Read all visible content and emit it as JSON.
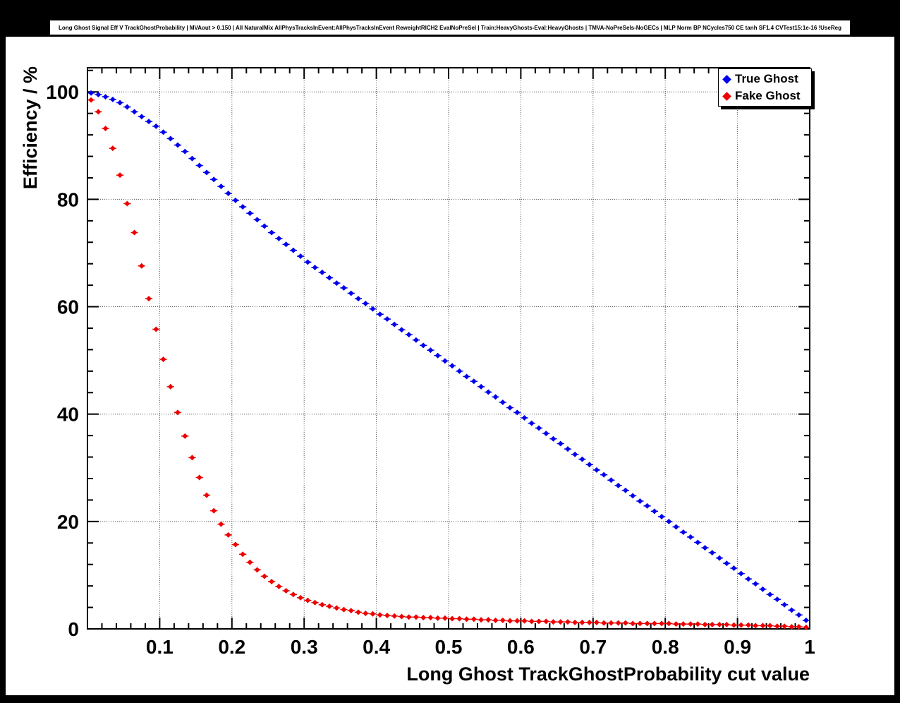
{
  "chart_data": {
    "type": "scatter",
    "title": "Long Ghost Signal Eff V TrackGhostProbability | MVAout > 0.150 | All NaturalMix AllPhysTracksInEvent:AllPhysTracksInEvent ReweightRICH2 EvalNoPreSel | Train:HeavyGhosts-Eval:HeavyGhosts | TMVA-NoPreSels-NoGECs | MLP Norm BP NCycles750 CE tanh SF1.4 CVTest15:1e-16 !UseReg",
    "xlabel": "Long Ghost TrackGhostProbability cut value",
    "ylabel": "Efficiency / %",
    "xlim": [
      0,
      1
    ],
    "ylim": [
      0,
      104.5
    ],
    "xticks": [
      0.1,
      0.2,
      0.3,
      0.4,
      0.5,
      0.6,
      0.7,
      0.8,
      0.9,
      1.0
    ],
    "xtick_labels": [
      "0.1",
      "0.2",
      "0.3",
      "0.4",
      "0.5",
      "0.6",
      "0.7",
      "0.8",
      "0.9",
      "1"
    ],
    "yticks": [
      0,
      20,
      40,
      60,
      80,
      100
    ],
    "ytick_labels": [
      "0",
      "20",
      "40",
      "60",
      "80",
      "100"
    ],
    "x_minor_step": 0.02,
    "y_minor_step": 4,
    "grid": true,
    "x_error": 0.005,
    "legend": {
      "position": "top-right",
      "entries": [
        {
          "label": "True Ghost",
          "color": "#0000ee"
        },
        {
          "label": "Fake Ghost",
          "color": "#ee0000"
        }
      ]
    },
    "x": [
      0.005,
      0.015,
      0.025,
      0.035,
      0.045,
      0.055,
      0.065,
      0.075,
      0.085,
      0.095,
      0.105,
      0.115,
      0.125,
      0.135,
      0.145,
      0.155,
      0.165,
      0.175,
      0.185,
      0.195,
      0.205,
      0.215,
      0.225,
      0.235,
      0.245,
      0.255,
      0.265,
      0.275,
      0.285,
      0.295,
      0.305,
      0.315,
      0.325,
      0.335,
      0.345,
      0.355,
      0.365,
      0.375,
      0.385,
      0.395,
      0.405,
      0.415,
      0.425,
      0.435,
      0.445,
      0.455,
      0.465,
      0.475,
      0.485,
      0.495,
      0.505,
      0.515,
      0.525,
      0.535,
      0.545,
      0.555,
      0.565,
      0.575,
      0.585,
      0.595,
      0.605,
      0.615,
      0.625,
      0.635,
      0.645,
      0.655,
      0.665,
      0.675,
      0.685,
      0.695,
      0.705,
      0.715,
      0.725,
      0.735,
      0.745,
      0.755,
      0.765,
      0.775,
      0.785,
      0.795,
      0.805,
      0.815,
      0.825,
      0.835,
      0.845,
      0.855,
      0.865,
      0.875,
      0.885,
      0.895,
      0.905,
      0.915,
      0.925,
      0.935,
      0.945,
      0.955,
      0.965,
      0.975,
      0.985,
      0.995
    ],
    "series": [
      {
        "name": "True Ghost",
        "color": "#0000ee",
        "values": [
          99.8,
          99.5,
          99.1,
          98.6,
          98.0,
          97.2,
          96.3,
          95.4,
          94.5,
          93.6,
          92.5,
          91.3,
          90.1,
          88.9,
          87.6,
          86.3,
          85.0,
          83.7,
          82.4,
          81.1,
          79.8,
          78.6,
          77.4,
          76.2,
          75.0,
          73.8,
          72.7,
          71.6,
          70.5,
          69.4,
          68.3,
          67.3,
          66.4,
          65.4,
          64.4,
          63.5,
          62.5,
          61.5,
          60.6,
          59.6,
          58.6,
          57.7,
          56.7,
          55.7,
          54.8,
          53.8,
          52.8,
          51.9,
          50.9,
          49.9,
          49.0,
          48.0,
          47.0,
          46.1,
          45.1,
          44.1,
          43.2,
          42.2,
          41.2,
          40.3,
          39.3,
          38.3,
          37.4,
          36.4,
          35.4,
          34.5,
          33.5,
          32.5,
          31.6,
          30.6,
          29.6,
          28.7,
          27.7,
          26.7,
          25.8,
          24.8,
          23.8,
          22.9,
          21.9,
          20.9,
          20.0,
          19.0,
          18.0,
          17.1,
          16.1,
          15.1,
          14.2,
          13.2,
          12.2,
          11.3,
          10.3,
          9.3,
          8.4,
          7.4,
          6.4,
          5.5,
          4.5,
          3.5,
          2.6,
          1.6
        ]
      },
      {
        "name": "Fake Ghost",
        "color": "#ee0000",
        "values": [
          98.5,
          96.3,
          93.2,
          89.5,
          84.5,
          79.2,
          73.8,
          67.6,
          61.5,
          55.8,
          50.2,
          45.1,
          40.3,
          35.9,
          31.9,
          28.2,
          24.9,
          22.0,
          19.5,
          17.5,
          15.7,
          13.9,
          12.4,
          11.0,
          9.8,
          8.8,
          7.9,
          7.1,
          6.4,
          5.8,
          5.3,
          4.9,
          4.5,
          4.2,
          3.9,
          3.6,
          3.4,
          3.1,
          2.9,
          2.8,
          2.6,
          2.5,
          2.4,
          2.3,
          2.2,
          2.2,
          2.1,
          2.1,
          2.0,
          2.0,
          1.9,
          1.9,
          1.8,
          1.8,
          1.7,
          1.7,
          1.6,
          1.6,
          1.5,
          1.5,
          1.5,
          1.4,
          1.4,
          1.4,
          1.3,
          1.3,
          1.3,
          1.2,
          1.2,
          1.2,
          1.2,
          1.1,
          1.1,
          1.1,
          1.1,
          1.0,
          1.0,
          1.0,
          1.0,
          1.0,
          1.0,
          0.9,
          0.9,
          0.9,
          0.9,
          0.8,
          0.8,
          0.8,
          0.8,
          0.7,
          0.7,
          0.7,
          0.6,
          0.6,
          0.6,
          0.5,
          0.5,
          0.4,
          0.4,
          0.3
        ]
      }
    ]
  }
}
